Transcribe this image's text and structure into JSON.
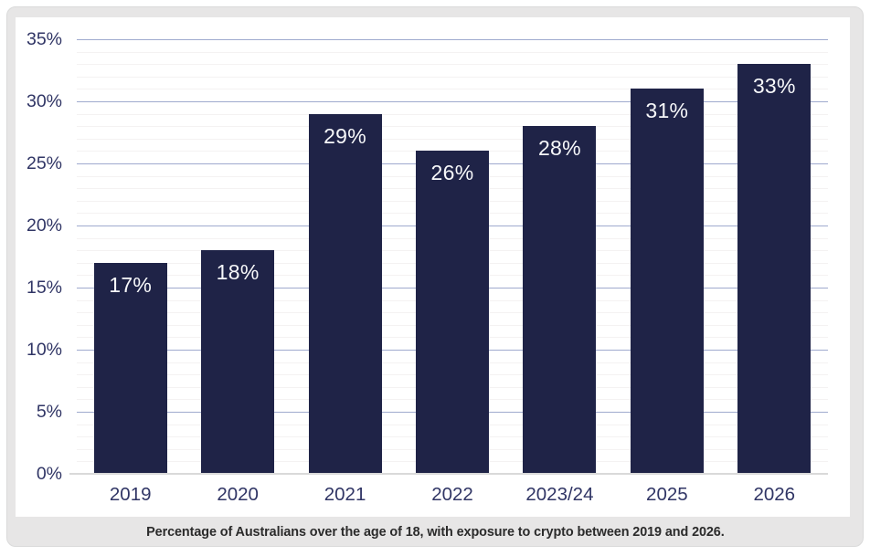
{
  "chart_data": {
    "type": "bar",
    "title": "",
    "caption": "Percentage of Australians over the age of 18, with exposure to crypto between 2019 and 2026.",
    "categories": [
      "2019",
      "2020",
      "2021",
      "2022",
      "2023/24",
      "2025",
      "2026"
    ],
    "values": [
      17,
      18,
      29,
      26,
      28,
      31,
      33
    ],
    "bar_labels": [
      "17%",
      "18%",
      "29%",
      "26%",
      "28%",
      "31%",
      "33%"
    ],
    "xlabel": "",
    "ylabel": "",
    "y_ticks": [
      "35%",
      "30%",
      "25%",
      "20%",
      "15%",
      "10%",
      "5%",
      "0%"
    ],
    "ylim": [
      0,
      35
    ],
    "y_major_step": 5,
    "y_minor_step": 1,
    "grid": true,
    "legend": "none",
    "colors": {
      "bar": "#1f2347",
      "bar_label": "#f7f8fa",
      "axis_label": "#303565",
      "major_gridline": "#9faace",
      "minor_gridline": "#f4f2f2",
      "baseline": "#d9d9d9",
      "card_background": "#e7e6e6",
      "panel_background": "#ffffff",
      "caption_text": "#2b2b2b"
    }
  }
}
